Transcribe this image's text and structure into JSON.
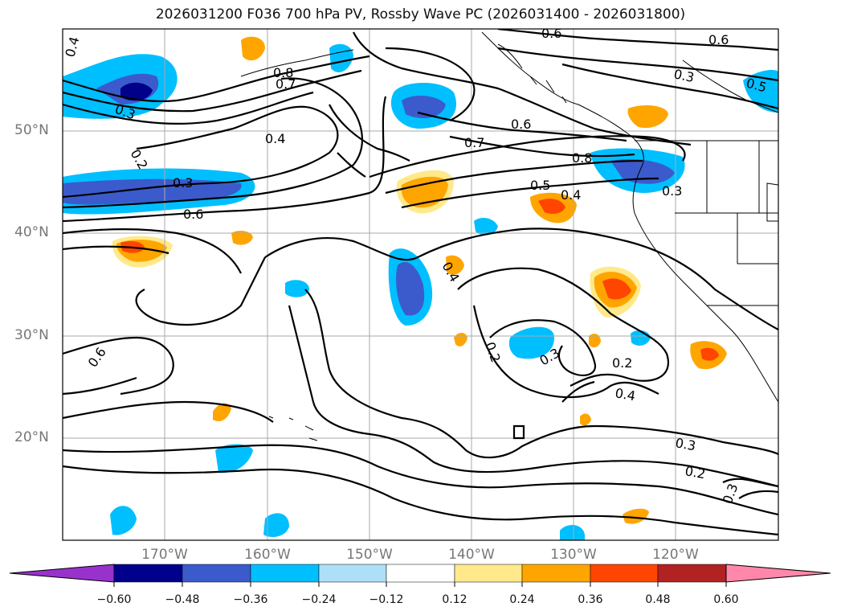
{
  "title": "2026031200 F036 700 hPa PV, Rossby Wave PC (2026031400 - 2026031800)",
  "lat_labels": [
    "50°N",
    "40°N",
    "30°N",
    "20°N"
  ],
  "lon_labels": [
    "170°W",
    "160°W",
    "150°W",
    "140°W",
    "130°W",
    "120°W"
  ],
  "contour_labels": [
    "0.4",
    "0.8",
    "0.7",
    "0.6",
    "0.6",
    "0.3",
    "0.5",
    "0.3",
    "0.2",
    "0.4",
    "0.6",
    "0.7",
    "0.8",
    "0.5",
    "0.4",
    "0.3",
    "0.3",
    "0.6",
    "0.4",
    "0.6",
    "0.2",
    "0.3",
    "0.2",
    "0.4",
    "0.3",
    "0.2",
    "0.3"
  ],
  "colorbar": {
    "ticks": [
      "−0.60",
      "−0.48",
      "−0.36",
      "−0.24",
      "−0.12",
      "0.12",
      "0.24",
      "0.36",
      "0.48",
      "0.60"
    ],
    "colors": [
      "#9932CC",
      "#00008B",
      "#3B5BCC",
      "#00BFFF",
      "#ADDFF8",
      "#FFFFFF",
      "#FFE98A",
      "#FFA500",
      "#FF4500",
      "#B22222",
      "#FF88AA"
    ]
  }
}
